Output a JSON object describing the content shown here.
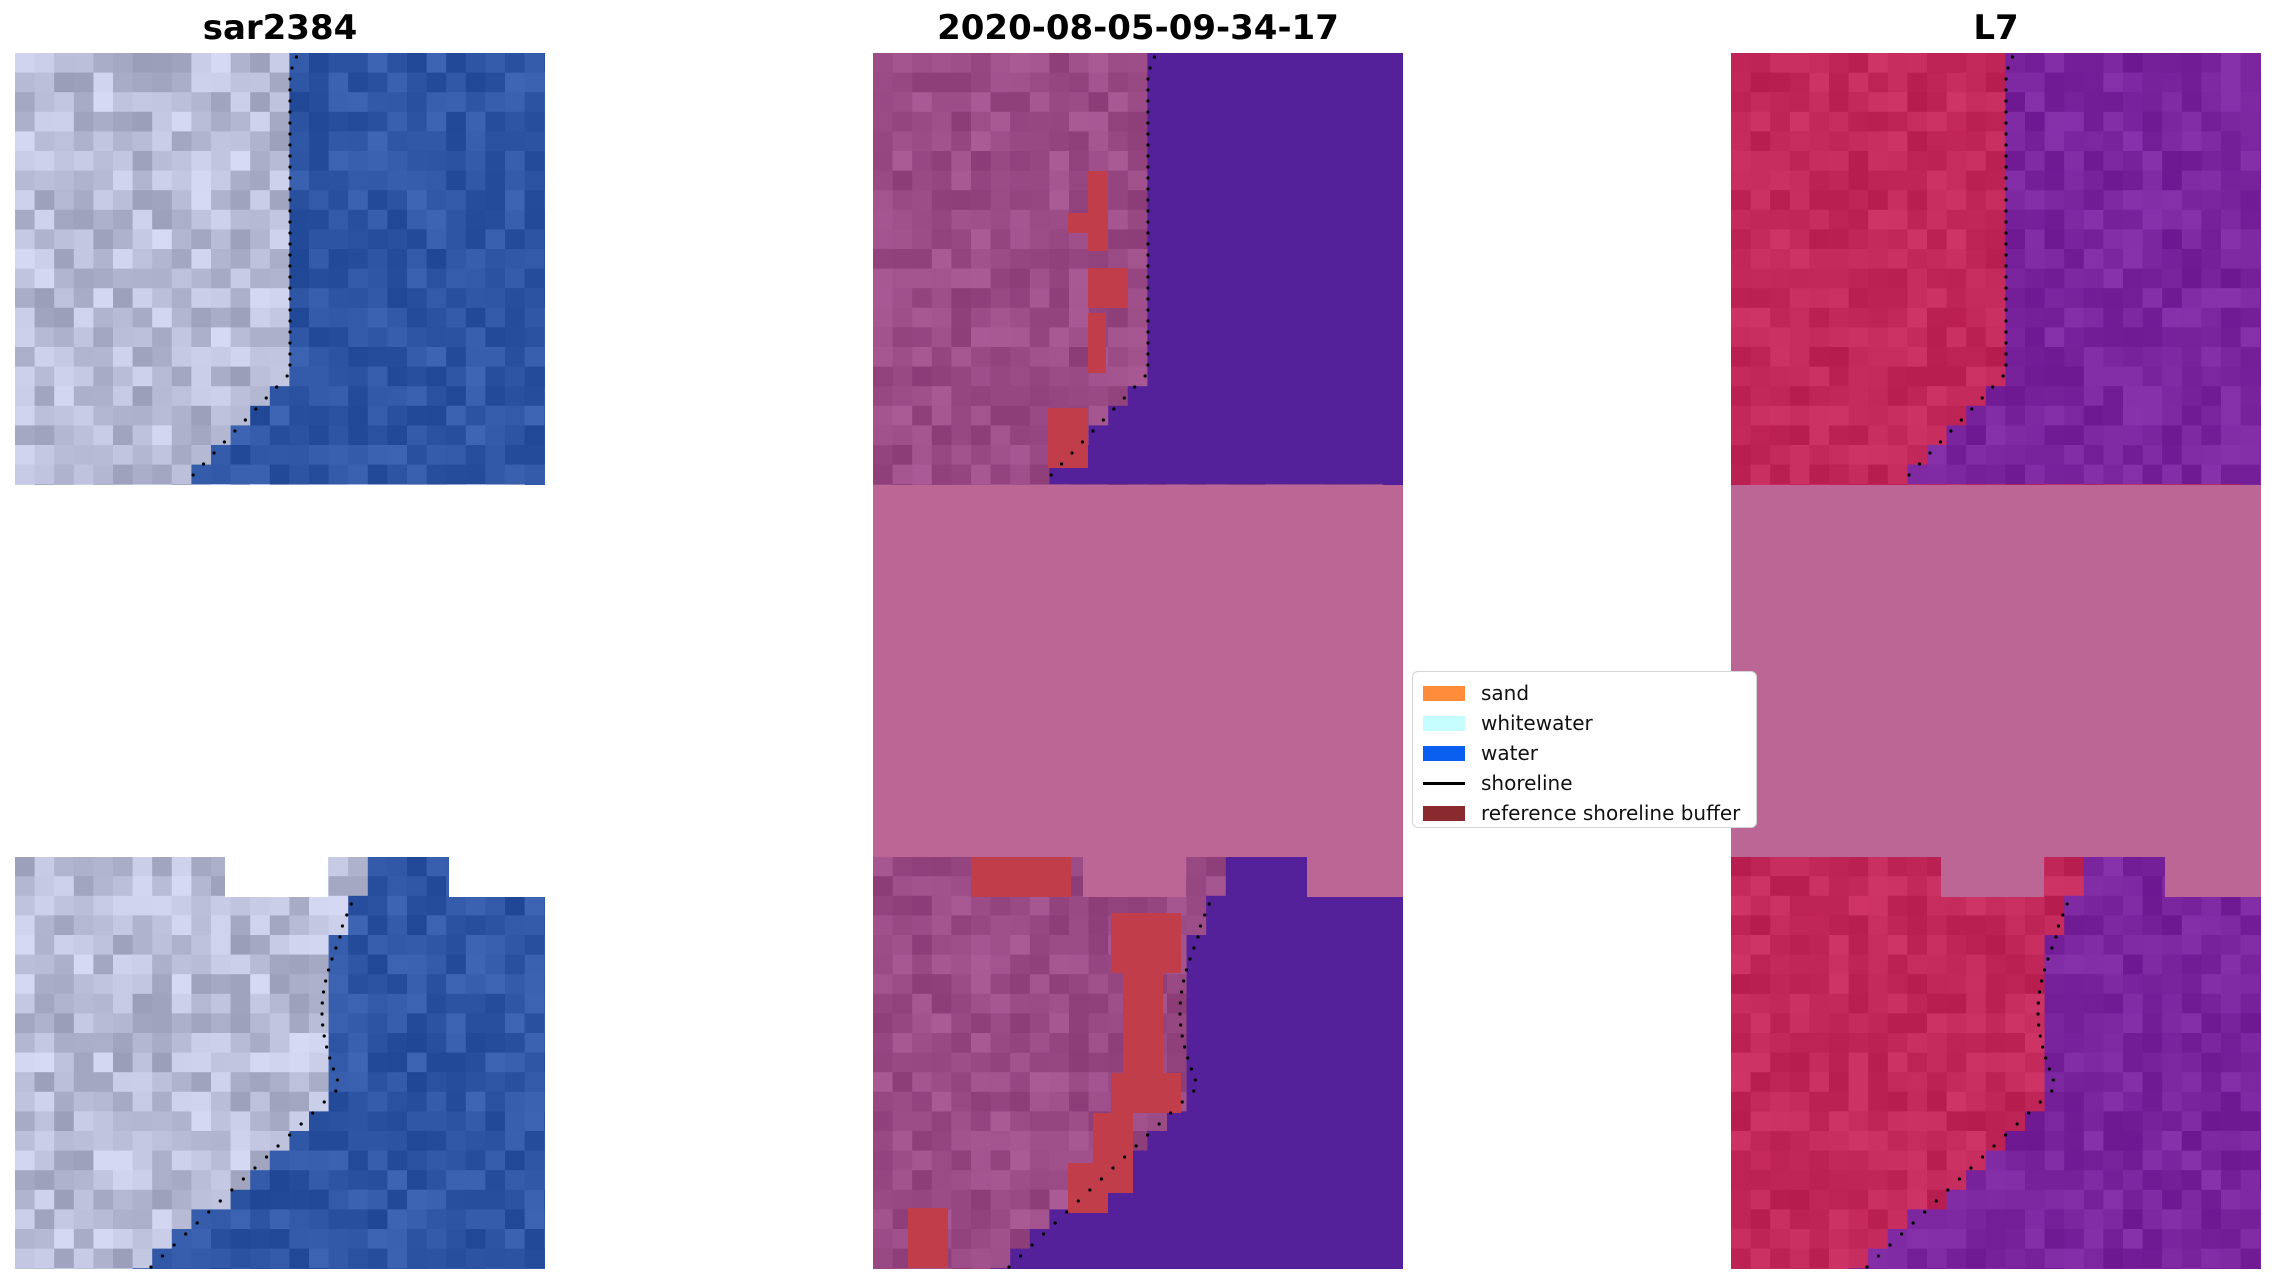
{
  "panels": [
    {
      "title": "sar2384",
      "kind": "rgb"
    },
    {
      "title": "2020-08-05-09-34-17",
      "kind": "classified"
    },
    {
      "title": "L7",
      "kind": "mndwi"
    }
  ],
  "legend": {
    "items": [
      {
        "label": "sand",
        "type": "patch",
        "color": "#ff8c3a"
      },
      {
        "label": "whitewater",
        "type": "patch",
        "color": "#c6fdff"
      },
      {
        "label": "water",
        "type": "patch",
        "color": "#0b5ff0"
      },
      {
        "label": "shoreline",
        "type": "line",
        "color": "#000000"
      },
      {
        "label": "reference shoreline buffer",
        "type": "patch",
        "color": "#8b2a2e"
      }
    ]
  },
  "colors": {
    "nodata_mask": "#bb6694",
    "classified_water": "#54219a",
    "classified_land": "#9b4b86",
    "buffer": "#c23d4a",
    "rgb_sea": "#2e56a4",
    "rgb_land": "#b8bcd6",
    "index_land": "#c2285a",
    "index_water": "#7a249e"
  }
}
